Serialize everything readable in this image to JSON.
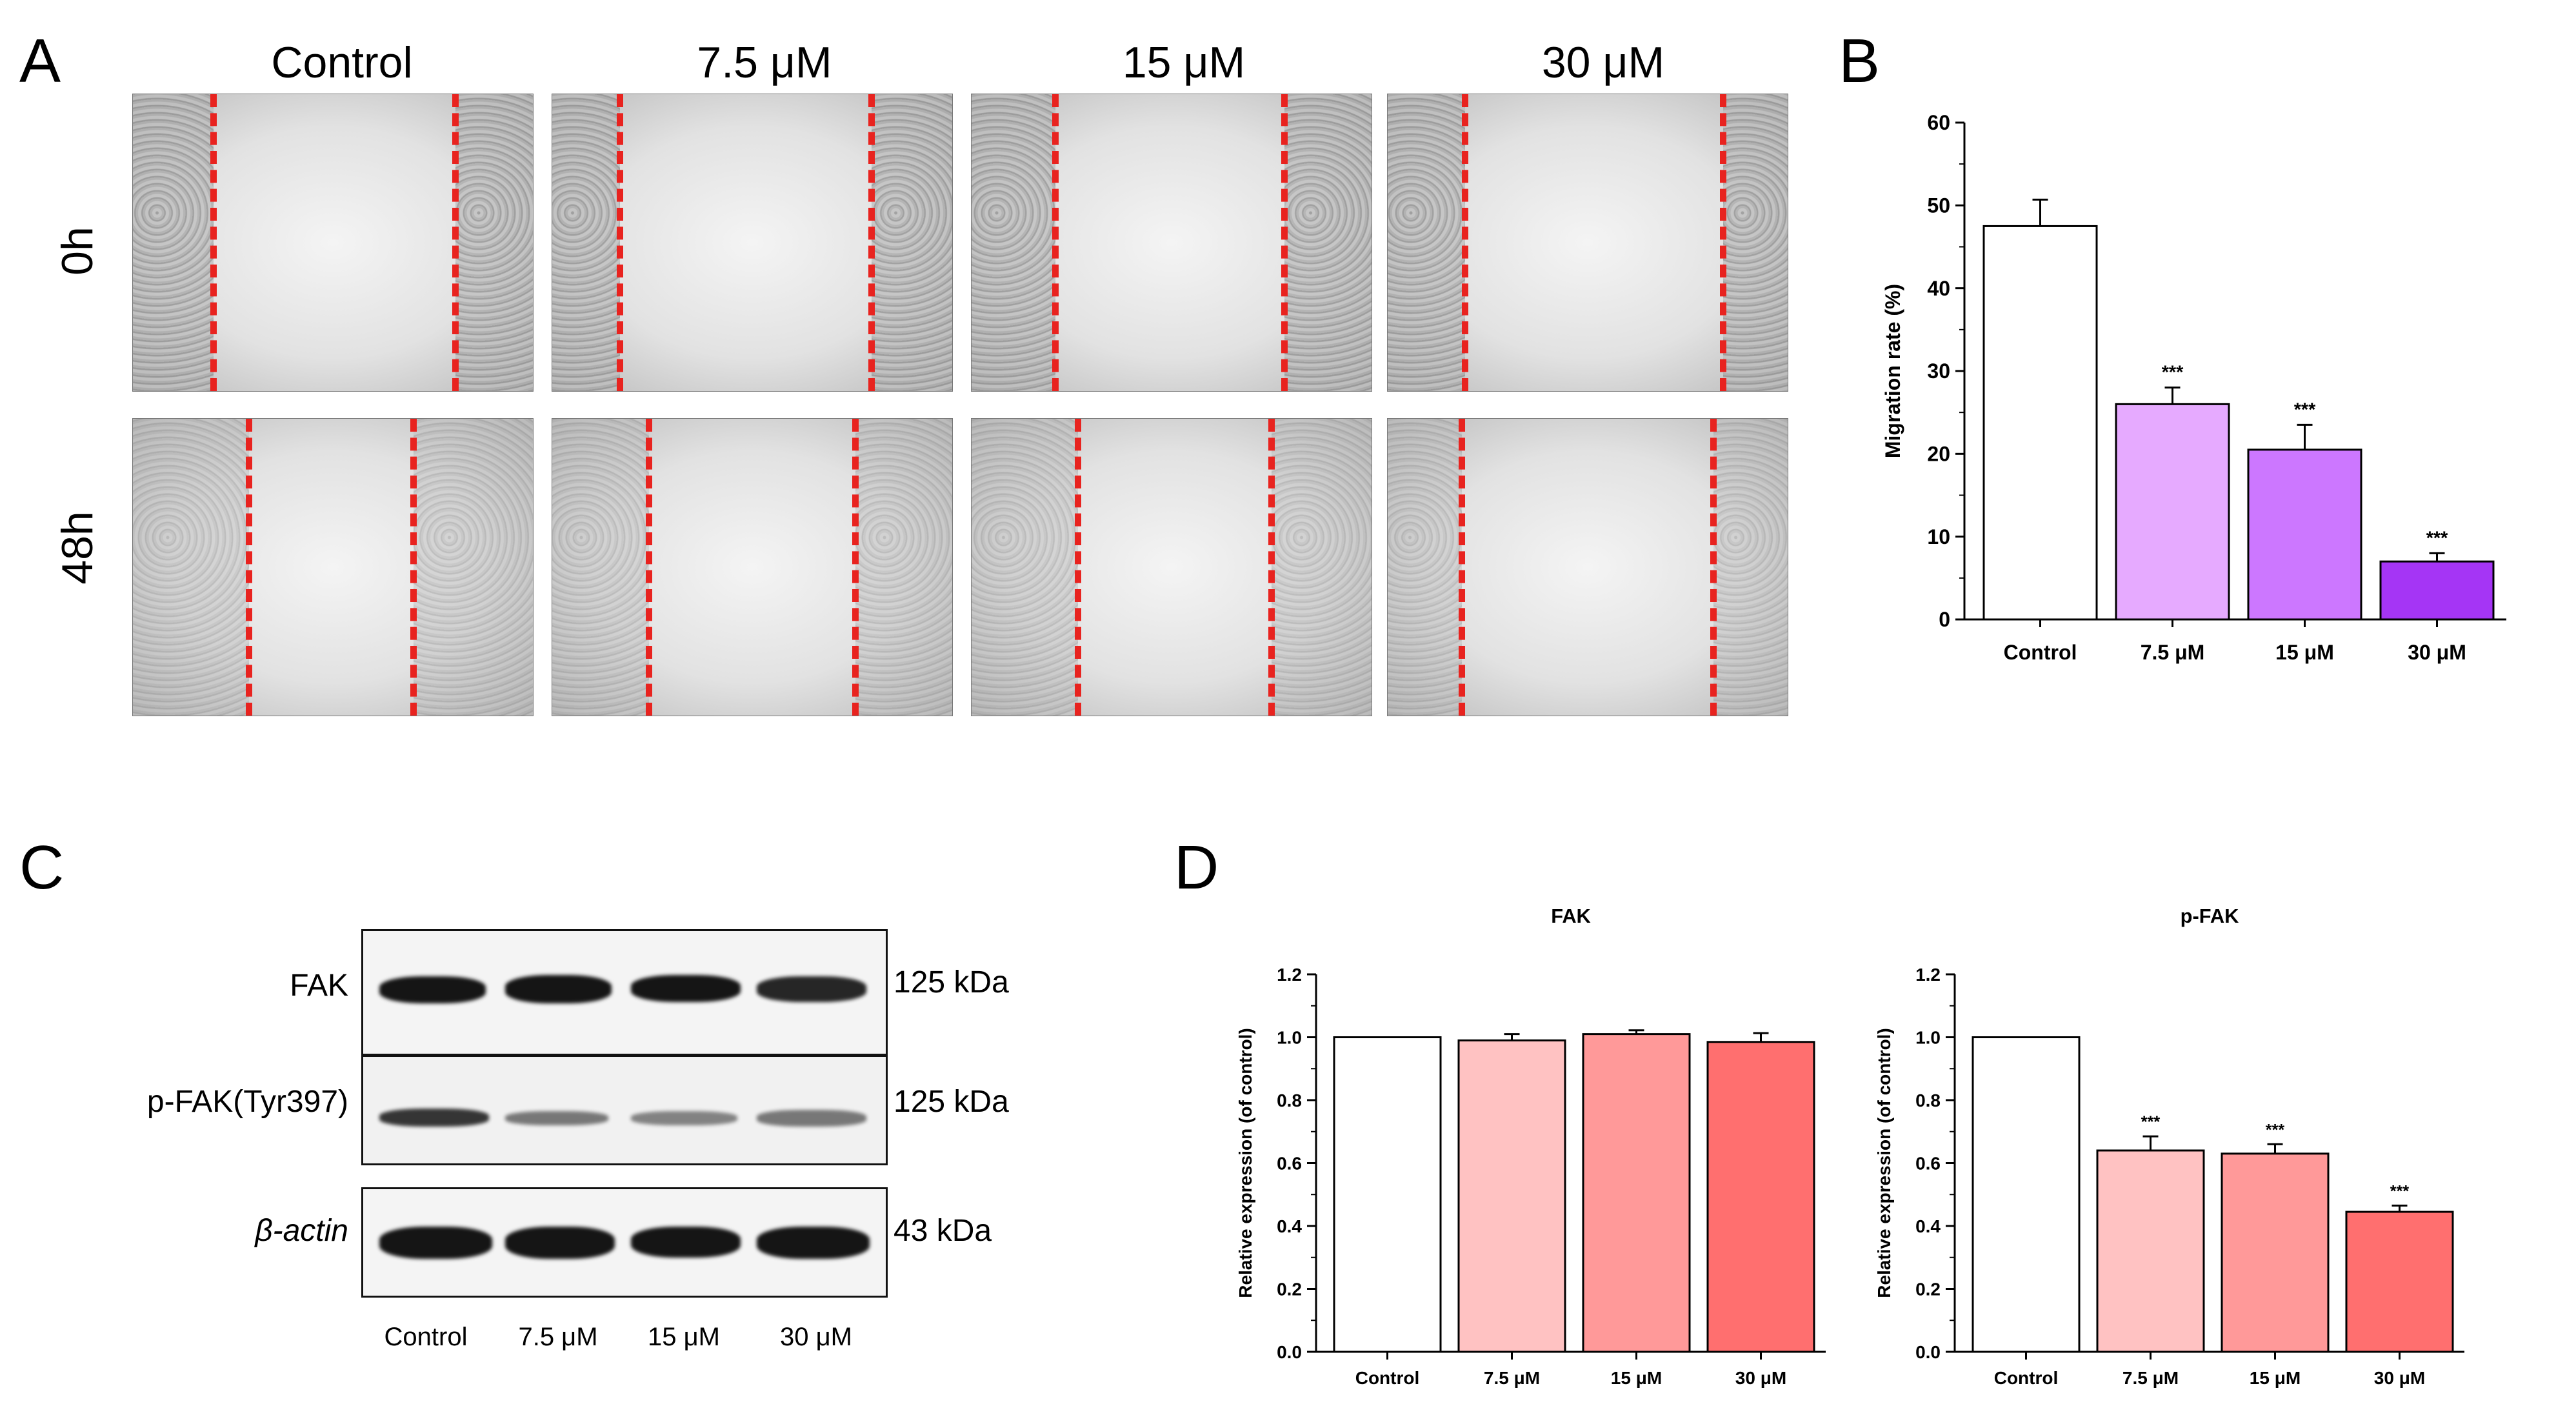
{
  "panel_letters": {
    "a": "A",
    "b": "B",
    "c": "C",
    "d": "D"
  },
  "panel_a": {
    "column_labels": [
      "Control",
      "7.5 μM",
      "15 μM",
      "30 μM"
    ],
    "row_labels": [
      "0h",
      "48h"
    ]
  },
  "panel_c": {
    "bands": [
      {
        "name": "FAK",
        "size": "125 kDa"
      },
      {
        "name": "p-FAK(Tyr397)",
        "size": "125 kDa"
      },
      {
        "name": "β-actin",
        "size": "43 kDa"
      }
    ],
    "lanes": [
      "Control",
      "7.5 μM",
      "15 μM",
      "30 μM"
    ]
  },
  "chart_data": [
    {
      "id": "B",
      "type": "bar",
      "title": "",
      "categories": [
        "Control",
        "7.5 μM",
        "15 μM",
        "30 μM"
      ],
      "values": [
        47.5,
        26.0,
        20.5,
        7.0
      ],
      "errors": [
        3.2,
        2.0,
        3.0,
        1.0
      ],
      "significance": [
        "",
        "***",
        "***",
        "***"
      ],
      "colors": [
        "#ffffff",
        "#e6aaff",
        "#cc77ff",
        "#a535f5"
      ],
      "xlabel": "",
      "ylabel": "Migration rate (%)",
      "ylim": [
        0,
        60
      ],
      "yticks": [
        "0",
        "10",
        "20",
        "30",
        "40",
        "50",
        "60"
      ]
    },
    {
      "id": "D1",
      "type": "bar",
      "title": "FAK",
      "categories": [
        "Control",
        "7.5 μM",
        "15 μM",
        "30 μM"
      ],
      "values": [
        1.0,
        0.99,
        1.01,
        0.985
      ],
      "errors": [
        0.0,
        0.02,
        0.012,
        0.028
      ],
      "significance": [
        "",
        "",
        "",
        ""
      ],
      "colors": [
        "#ffffff",
        "#ffc2c2",
        "#ff9999",
        "#ff6f6f"
      ],
      "xlabel": "",
      "ylabel": "Relative expression (of control)",
      "ylim": [
        0,
        1.2
      ],
      "yticks": [
        "0.0",
        "0.2",
        "0.4",
        "0.6",
        "0.8",
        "1.0",
        "1.2"
      ]
    },
    {
      "id": "D2",
      "type": "bar",
      "title": "p-FAK",
      "categories": [
        "Control",
        "7.5 μM",
        "15 μM",
        "30 μM"
      ],
      "values": [
        1.0,
        0.64,
        0.63,
        0.445
      ],
      "errors": [
        0.0,
        0.045,
        0.03,
        0.02
      ],
      "significance": [
        "",
        "***",
        "***",
        "***"
      ],
      "colors": [
        "#ffffff",
        "#ffc2c2",
        "#ff9999",
        "#ff6f6f"
      ],
      "xlabel": "",
      "ylabel": "Relative expression (of control)",
      "ylim": [
        0,
        1.2
      ],
      "yticks": [
        "0.0",
        "0.2",
        "0.4",
        "0.6",
        "0.8",
        "1.0",
        "1.2"
      ]
    }
  ]
}
